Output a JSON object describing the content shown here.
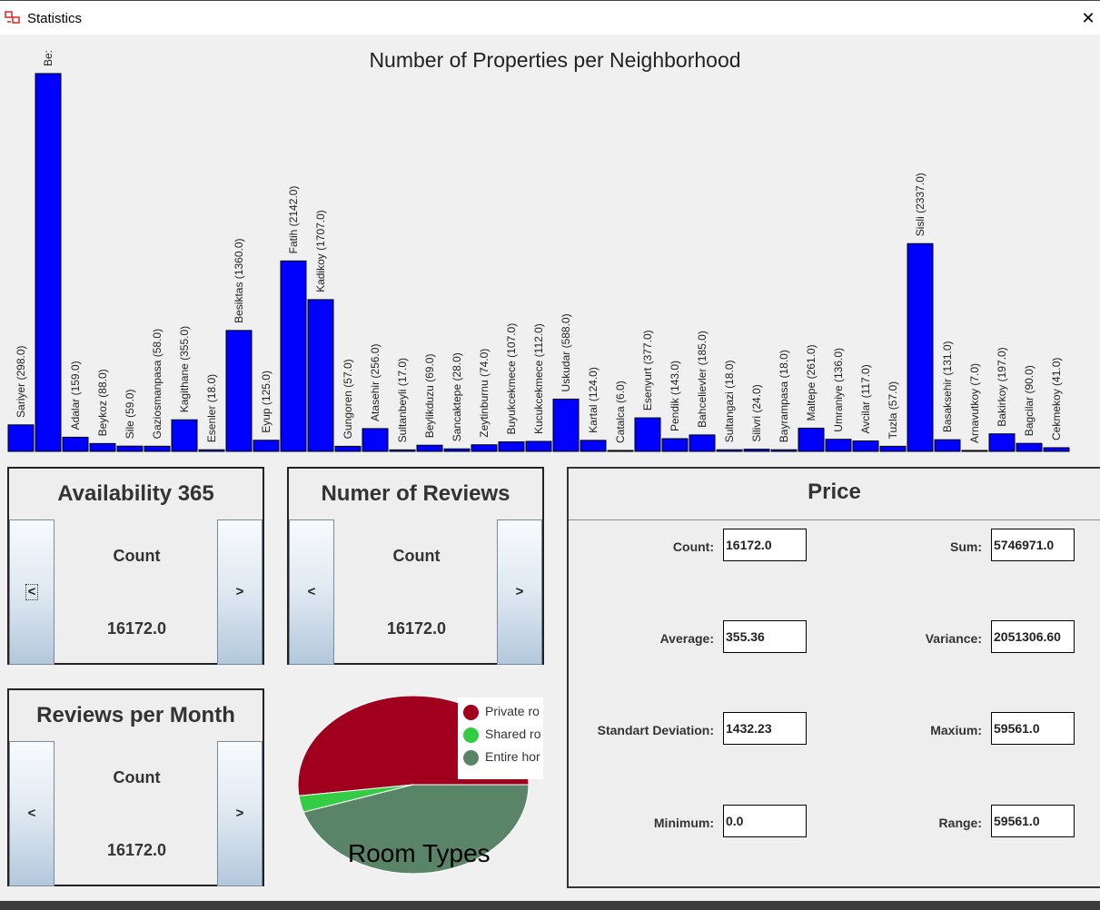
{
  "window": {
    "title": "Statistics",
    "close_glyph": "✕"
  },
  "bar_chart": {
    "title": "Number of Properties per Neighborhood",
    "bar_color": "#0000ff"
  },
  "chart_data": [
    {
      "type": "bar",
      "title": "Number of Properties per Neighborhood",
      "categories": [
        "Sariyer",
        "Beyoglu",
        "Adalar",
        "Beykoz",
        "Sile",
        "Gaziosmanpasa",
        "Kagithane",
        "Esenler",
        "Besiktas",
        "Eyup",
        "Fatih",
        "Kadikoy",
        "Gungoren",
        "Atasehir",
        "Sultanbeyli",
        "Beylikduzu",
        "Sancaktepe",
        "Zeytinburnu",
        "Buyukcekmece",
        "Kucukcekmece",
        "Uskudar",
        "Kartal",
        "Catalca",
        "Esenyurt",
        "Pendik",
        "Bahcelievler",
        "Sultangazi",
        "Silivri",
        "Bayrampasa",
        "Maltepe",
        "Umraniye",
        "Avcilar",
        "Tuzla",
        "Sisli",
        "Basaksehir",
        "Arnavutkoy",
        "Bakirkoy",
        "Bagcilar",
        "Cekmekoy"
      ],
      "values": [
        298.0,
        4250.0,
        159.0,
        88.0,
        59.0,
        58.0,
        355.0,
        18.0,
        1360.0,
        125.0,
        2142.0,
        1707.0,
        57.0,
        256.0,
        17.0,
        69.0,
        28.0,
        74.0,
        107.0,
        112.0,
        588.0,
        124.0,
        6.0,
        377.0,
        143.0,
        185.0,
        18.0,
        24.0,
        18.0,
        261.0,
        136.0,
        117.0,
        57.0,
        2337.0,
        131.0,
        7.0,
        197.0,
        90.0,
        41.0
      ],
      "labels": [
        "Sariyer (298.0)",
        "Be:",
        "Adalar (159.0)",
        "Beykoz (88.0)",
        "Sile (59.0)",
        "Gaziosmanpasa (58.0)",
        "Kagithane (355.0)",
        "Esenler (18.0)",
        "Besiktas (1360.0)",
        "Eyup (125.0)",
        "Fatih (2142.0)",
        "Kadikoy (1707.0)",
        "Gungoren (57.0)",
        "Atasehir (256.0)",
        "Sultanbeyli (17.0)",
        "Beylikduzu (69.0)",
        "Sancaktepe (28.0)",
        "Zeytinburnu (74.0)",
        "Buyukcekmece (107.0)",
        "Kucukcekmece (112.0)",
        "Uskudar (588.0)",
        "Kartal (124.0)",
        "Catalca (6.0)",
        "Esenyurt (377.0)",
        "Pendik (143.0)",
        "Bahcelievler (185.0)",
        "Sultangazi (18.0)",
        "Silivri (24.0)",
        "Bayrampasa (18.0)",
        "Maltepe (261.0)",
        "Umraniye (136.0)",
        "Avcilar (117.0)",
        "Tuzla (57.0)",
        "Sisli (2337.0)",
        "Basaksehir (131.0)",
        "Arnavutkoy (7.0)",
        "Bakirkoy (197.0)",
        "Bagcilar (90.0)",
        "Cekmekoy (41.0)"
      ]
    },
    {
      "type": "pie",
      "title": "Room Types",
      "slices": [
        {
          "name": "Private ro",
          "value": 52,
          "color": "#a0001e"
        },
        {
          "name": "Shared ro",
          "value": 3,
          "color": "#33cc44"
        },
        {
          "name": "Entire hor",
          "value": 45,
          "color": "#5a8468"
        }
      ]
    }
  ],
  "availability": {
    "title": "Availability 365",
    "stat": "Count",
    "value": "16172.0",
    "prev": "<",
    "next": ">"
  },
  "reviews": {
    "title": "Numer of Reviews",
    "stat": "Count",
    "value": "16172.0",
    "prev": "<",
    "next": ">"
  },
  "reviews_month": {
    "title": "Reviews per Month",
    "stat": "Count",
    "value": "16172.0",
    "prev": "<",
    "next": ">"
  },
  "price": {
    "title": "Price",
    "count_label": "Count:",
    "count": "16172.0",
    "sum_label": "Sum:",
    "sum": "5746971.0",
    "average_label": "Average:",
    "average": "355.36",
    "variance_label": "Variance:",
    "variance": "2051306.60",
    "std_label": "Standart Deviation:",
    "std": "1432.23",
    "max_label": "Maxium:",
    "max": "59561.0",
    "min_label": "Minimum:",
    "min": "0.0",
    "range_label": "Range:",
    "range": "59561.0"
  }
}
